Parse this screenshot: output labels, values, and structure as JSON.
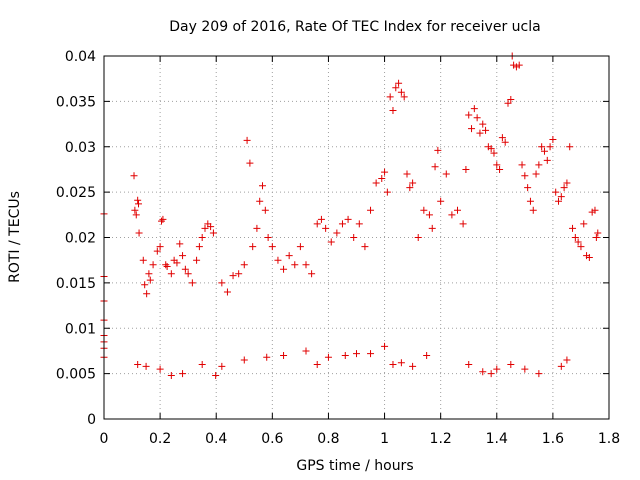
{
  "chart_data": {
    "type": "scatter",
    "title": "Day 209 of 2016, Rate Of TEC Index for receiver ucla",
    "xlabel": "GPS time / hours",
    "ylabel": "ROTI / TECUs",
    "xlim": [
      0,
      1.8
    ],
    "ylim": [
      0,
      0.04
    ],
    "xticks": [
      "0",
      "0.2",
      "0.4",
      "0.6",
      "0.8",
      "1",
      "1.2",
      "1.4",
      "1.6",
      "1.8"
    ],
    "yticks": [
      "0",
      "0.005",
      "0.01",
      "0.015",
      "0.02",
      "0.025",
      "0.03",
      "0.035",
      "0.04"
    ],
    "grid": true,
    "marker": "plus",
    "color": "#e00000",
    "points": [
      [
        0.0,
        0.0226
      ],
      [
        0.0,
        0.0157
      ],
      [
        0.0,
        0.013
      ],
      [
        0.0,
        0.0109
      ],
      [
        0.0,
        0.0092
      ],
      [
        0.0,
        0.0085
      ],
      [
        0.0,
        0.0078
      ],
      [
        0.0,
        0.0068
      ],
      [
        0.107,
        0.0268
      ],
      [
        0.11,
        0.023
      ],
      [
        0.115,
        0.0225
      ],
      [
        0.12,
        0.0241
      ],
      [
        0.123,
        0.0237
      ],
      [
        0.125,
        0.0205
      ],
      [
        0.14,
        0.0175
      ],
      [
        0.145,
        0.0148
      ],
      [
        0.152,
        0.0138
      ],
      [
        0.16,
        0.016
      ],
      [
        0.165,
        0.0153
      ],
      [
        0.175,
        0.017
      ],
      [
        0.19,
        0.0185
      ],
      [
        0.2,
        0.019
      ],
      [
        0.205,
        0.0218
      ],
      [
        0.21,
        0.022
      ],
      [
        0.22,
        0.017
      ],
      [
        0.225,
        0.0168
      ],
      [
        0.24,
        0.016
      ],
      [
        0.25,
        0.0175
      ],
      [
        0.26,
        0.0172
      ],
      [
        0.27,
        0.0193
      ],
      [
        0.28,
        0.018
      ],
      [
        0.29,
        0.0165
      ],
      [
        0.3,
        0.016
      ],
      [
        0.315,
        0.015
      ],
      [
        0.33,
        0.0175
      ],
      [
        0.34,
        0.019
      ],
      [
        0.35,
        0.02
      ],
      [
        0.36,
        0.021
      ],
      [
        0.37,
        0.0215
      ],
      [
        0.38,
        0.0212
      ],
      [
        0.39,
        0.0205
      ],
      [
        0.398,
        0.0048
      ],
      [
        0.42,
        0.015
      ],
      [
        0.44,
        0.014
      ],
      [
        0.46,
        0.0158
      ],
      [
        0.48,
        0.016
      ],
      [
        0.5,
        0.017
      ],
      [
        0.51,
        0.0307
      ],
      [
        0.52,
        0.0282
      ],
      [
        0.53,
        0.019
      ],
      [
        0.545,
        0.021
      ],
      [
        0.555,
        0.024
      ],
      [
        0.565,
        0.0257
      ],
      [
        0.575,
        0.023
      ],
      [
        0.585,
        0.02
      ],
      [
        0.6,
        0.019
      ],
      [
        0.62,
        0.0175
      ],
      [
        0.64,
        0.0165
      ],
      [
        0.66,
        0.018
      ],
      [
        0.68,
        0.017
      ],
      [
        0.7,
        0.019
      ],
      [
        0.72,
        0.017
      ],
      [
        0.74,
        0.016
      ],
      [
        0.76,
        0.0215
      ],
      [
        0.775,
        0.022
      ],
      [
        0.79,
        0.021
      ],
      [
        0.81,
        0.0195
      ],
      [
        0.83,
        0.0205
      ],
      [
        0.85,
        0.0215
      ],
      [
        0.87,
        0.022
      ],
      [
        0.89,
        0.02
      ],
      [
        0.91,
        0.0215
      ],
      [
        0.93,
        0.019
      ],
      [
        0.95,
        0.023
      ],
      [
        0.97,
        0.026
      ],
      [
        0.99,
        0.0265
      ],
      [
        1.0,
        0.0272
      ],
      [
        1.01,
        0.025
      ],
      [
        1.02,
        0.0355
      ],
      [
        1.03,
        0.034
      ],
      [
        1.04,
        0.0365
      ],
      [
        1.05,
        0.037
      ],
      [
        1.06,
        0.036
      ],
      [
        1.07,
        0.0355
      ],
      [
        1.08,
        0.027
      ],
      [
        1.09,
        0.0255
      ],
      [
        1.1,
        0.026
      ],
      [
        1.12,
        0.02
      ],
      [
        1.14,
        0.023
      ],
      [
        1.16,
        0.0225
      ],
      [
        1.17,
        0.021
      ],
      [
        1.18,
        0.0278
      ],
      [
        1.19,
        0.0296
      ],
      [
        1.2,
        0.024
      ],
      [
        1.22,
        0.027
      ],
      [
        1.24,
        0.0225
      ],
      [
        1.26,
        0.023
      ],
      [
        1.28,
        0.0215
      ],
      [
        1.29,
        0.0275
      ],
      [
        1.3,
        0.0335
      ],
      [
        1.31,
        0.032
      ],
      [
        1.32,
        0.0342
      ],
      [
        1.33,
        0.0332
      ],
      [
        1.34,
        0.0315
      ],
      [
        1.35,
        0.0325
      ],
      [
        1.36,
        0.0318
      ],
      [
        1.37,
        0.03
      ],
      [
        1.38,
        0.0298
      ],
      [
        1.39,
        0.0293
      ],
      [
        1.4,
        0.028
      ],
      [
        1.41,
        0.0275
      ],
      [
        1.42,
        0.031
      ],
      [
        1.43,
        0.0305
      ],
      [
        1.44,
        0.0348
      ],
      [
        1.45,
        0.0352
      ],
      [
        1.455,
        0.04
      ],
      [
        1.46,
        0.039
      ],
      [
        1.47,
        0.0388
      ],
      [
        1.48,
        0.039
      ],
      [
        1.49,
        0.028
      ],
      [
        1.5,
        0.0268
      ],
      [
        1.51,
        0.0255
      ],
      [
        1.52,
        0.024
      ],
      [
        1.53,
        0.023
      ],
      [
        1.54,
        0.027
      ],
      [
        1.55,
        0.028
      ],
      [
        1.56,
        0.03
      ],
      [
        1.57,
        0.0295
      ],
      [
        1.58,
        0.0285
      ],
      [
        1.59,
        0.03
      ],
      [
        1.6,
        0.0308
      ],
      [
        1.61,
        0.025
      ],
      [
        1.62,
        0.024
      ],
      [
        1.63,
        0.0245
      ],
      [
        1.64,
        0.0255
      ],
      [
        1.65,
        0.026
      ],
      [
        1.66,
        0.03
      ],
      [
        1.67,
        0.021
      ],
      [
        1.68,
        0.02
      ],
      [
        1.69,
        0.0195
      ],
      [
        1.7,
        0.019
      ],
      [
        1.71,
        0.0215
      ],
      [
        1.72,
        0.018
      ],
      [
        1.73,
        0.0178
      ],
      [
        1.74,
        0.0228
      ],
      [
        1.75,
        0.023
      ],
      [
        1.755,
        0.02
      ],
      [
        1.76,
        0.0205
      ],
      [
        1.03,
        0.006
      ],
      [
        1.06,
        0.0062
      ],
      [
        1.1,
        0.0058
      ],
      [
        1.15,
        0.007
      ],
      [
        1.3,
        0.006
      ],
      [
        1.35,
        0.0052
      ],
      [
        1.38,
        0.005
      ],
      [
        1.4,
        0.0055
      ],
      [
        1.45,
        0.006
      ],
      [
        1.5,
        0.0055
      ],
      [
        1.55,
        0.005
      ],
      [
        1.63,
        0.0058
      ],
      [
        1.65,
        0.0065
      ],
      [
        0.12,
        0.006
      ],
      [
        0.15,
        0.0058
      ],
      [
        0.2,
        0.0055
      ],
      [
        0.24,
        0.0048
      ],
      [
        0.28,
        0.005
      ],
      [
        0.35,
        0.006
      ],
      [
        0.42,
        0.0058
      ],
      [
        0.5,
        0.0065
      ],
      [
        0.58,
        0.0068
      ],
      [
        0.64,
        0.007
      ],
      [
        0.72,
        0.0075
      ],
      [
        0.76,
        0.006
      ],
      [
        0.8,
        0.0068
      ],
      [
        0.86,
        0.007
      ],
      [
        0.9,
        0.0072
      ],
      [
        0.95,
        0.0072
      ],
      [
        1.0,
        0.008
      ]
    ]
  }
}
